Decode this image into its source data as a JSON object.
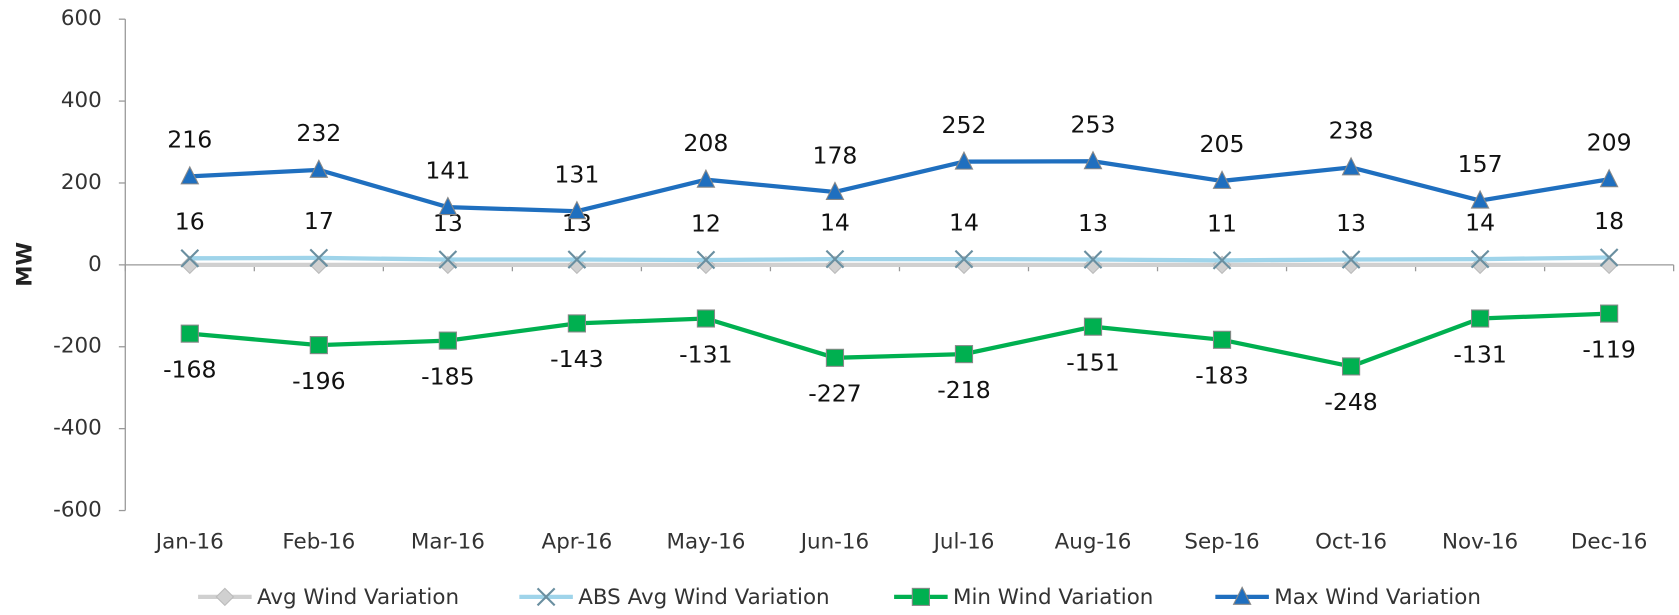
{
  "chart_data": {
    "type": "line",
    "y_label": "MW",
    "categories": [
      "Jan-16",
      "Feb-16",
      "Mar-16",
      "Apr-16",
      "May-16",
      "Jun-16",
      "Jul-16",
      "Aug-16",
      "Sep-16",
      "Oct-16",
      "Nov-16",
      "Dec-16"
    ],
    "ylim": [
      -600,
      600
    ],
    "yticks": [
      -600,
      -400,
      -200,
      0,
      200,
      400,
      600
    ],
    "series": [
      {
        "name": "Avg Wind Variation",
        "color": "#d0d0d0",
        "marker": "diamond",
        "values": [
          0,
          0,
          0,
          0,
          0,
          0,
          0,
          0,
          0,
          0,
          0,
          0
        ]
      },
      {
        "name": "ABS Avg Wind Variation",
        "color": "#9fd4ea",
        "marker": "x",
        "label_position": "above",
        "values": [
          16,
          17,
          13,
          13,
          12,
          14,
          14,
          13,
          11,
          13,
          14,
          18
        ]
      },
      {
        "name": "Min Wind Variation",
        "color": "#00b050",
        "marker": "square",
        "label_position": "below",
        "values": [
          -168,
          -196,
          -185,
          -143,
          -131,
          -227,
          -218,
          -151,
          -183,
          -248,
          -131,
          -119
        ]
      },
      {
        "name": "Max Wind Variation",
        "color": "#1f6fbf",
        "marker": "triangle",
        "label_position": "above",
        "values": [
          216,
          232,
          141,
          131,
          208,
          178,
          252,
          253,
          205,
          238,
          157,
          209
        ]
      }
    ]
  }
}
